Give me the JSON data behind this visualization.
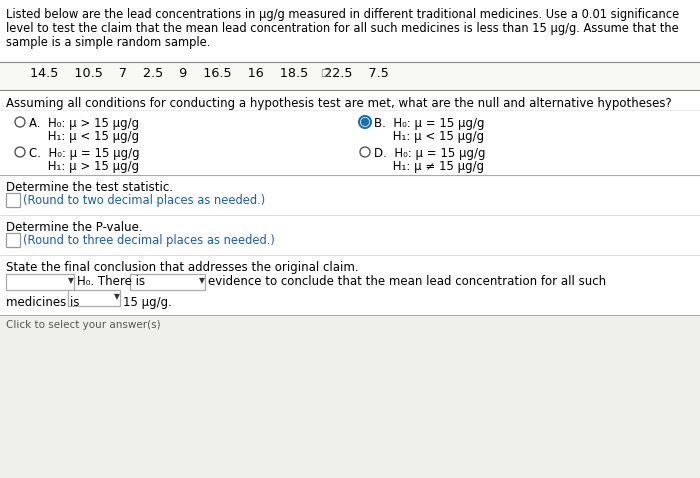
{
  "bg_color": "#f0f0eb",
  "white_bg": "#ffffff",
  "text_color": "#000000",
  "blue_text": "#1a5fa8",
  "title_lines": [
    "Listed below are the lead concentrations in μg/g measured in different traditional medicines. Use a 0.01 significance",
    "level to test the claim that the mean lead concentration for all such medicines is less than 15 μg/g. Assume that the",
    "sample is a simple random sample."
  ],
  "data_values": "14.5    10.5    7    2.5    9    16.5    16    18.5    22.5    7.5",
  "question": "Assuming all conditions for conducting a hypothesis test are met, what are the null and alternative hypotheses?",
  "optA1": "A.  H₀: μ > 15 μg/g",
  "optA2": "     H₁: μ < 15 μg/g",
  "optB1": "B.  H₀: μ = 15 μg/g",
  "optB2": "     H₁: μ < 15 μg/g",
  "optC1": "C.  H₀: μ = 15 μg/g",
  "optC2": "     H₁: μ > 15 μg/g",
  "optD1": "D.  H₀: μ = 15 μg/g",
  "optD2": "     H₁: μ ≠ 15 μg/g",
  "stat_label": "Determine the test statistic.",
  "stat_hint": "(Round to two decimal places as needed.)",
  "pval_label": "Determine the P-value.",
  "pval_hint": "(Round to three decimal places as needed.)",
  "conc_label": "State the final conclusion that addresses the original claim.",
  "conc_suffix": "evidence to conclude that the mean lead concentration for all such",
  "conc_line2_pre": "medicines is",
  "conc_line2_suf": "15 μg/g.",
  "h0_label": "H₀. There is",
  "line_color": "#aaaaaa",
  "circle_color": "#555555",
  "sel_color": "#1a6faf"
}
